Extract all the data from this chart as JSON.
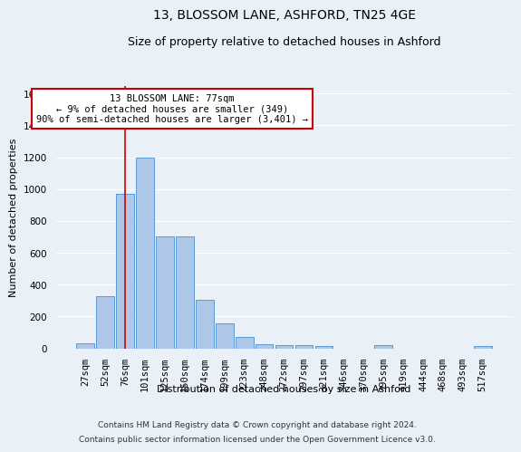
{
  "title": "13, BLOSSOM LANE, ASHFORD, TN25 4GE",
  "subtitle": "Size of property relative to detached houses in Ashford",
  "xlabel": "Distribution of detached houses by size in Ashford",
  "ylabel": "Number of detached properties",
  "categories": [
    "27sqm",
    "52sqm",
    "76sqm",
    "101sqm",
    "125sqm",
    "150sqm",
    "174sqm",
    "199sqm",
    "223sqm",
    "248sqm",
    "272sqm",
    "297sqm",
    "321sqm",
    "346sqm",
    "370sqm",
    "395sqm",
    "419sqm",
    "444sqm",
    "468sqm",
    "493sqm",
    "517sqm"
  ],
  "bar_heights": [
    30,
    325,
    970,
    1200,
    700,
    700,
    305,
    155,
    70,
    28,
    18,
    18,
    15,
    0,
    0,
    18,
    0,
    0,
    0,
    0,
    15
  ],
  "bar_color": "#aec6e8",
  "bar_edge_color": "#5b9bd5",
  "vline_color": "#cc0000",
  "vline_pos": 2.0,
  "ylim": [
    0,
    1650
  ],
  "yticks": [
    0,
    200,
    400,
    600,
    800,
    1000,
    1200,
    1400,
    1600
  ],
  "annotation_text": "13 BLOSSOM LANE: 77sqm\n← 9% of detached houses are smaller (349)\n90% of semi-detached houses are larger (3,401) →",
  "annotation_box_color": "#ffffff",
  "annotation_box_edge": "#cc0000",
  "footnote1": "Contains HM Land Registry data © Crown copyright and database right 2024.",
  "footnote2": "Contains public sector information licensed under the Open Government Licence v3.0.",
  "bg_color": "#eaf0f8",
  "grid_color": "#ffffff",
  "title_fontsize": 10,
  "subtitle_fontsize": 9,
  "axis_label_fontsize": 8,
  "tick_fontsize": 7.5,
  "annotation_fontsize": 7.5,
  "footnote_fontsize": 6.5
}
